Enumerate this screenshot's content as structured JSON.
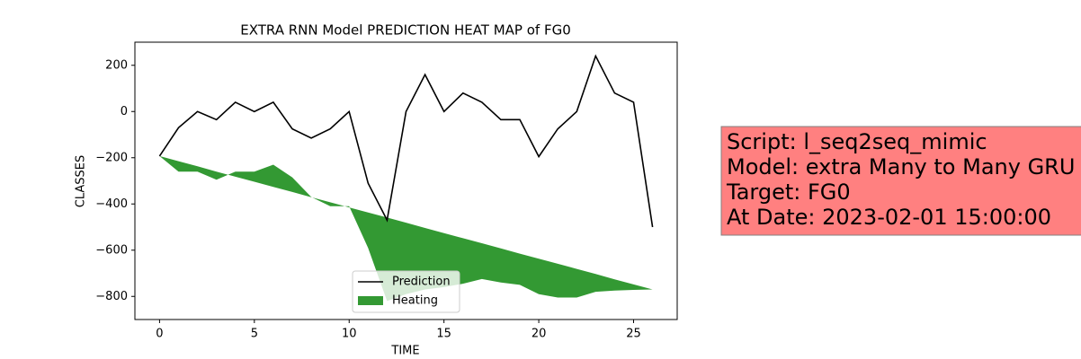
{
  "chart_data": {
    "type": "line",
    "title": "EXTRA RNN Model PREDICTION HEAT MAP of FG0",
    "x_label": "TIME",
    "y_label": "CLASSES",
    "x": [
      0,
      1,
      2,
      3,
      4,
      5,
      6,
      7,
      8,
      9,
      10,
      11,
      12,
      13,
      14,
      15,
      16,
      17,
      18,
      19,
      20,
      21,
      22,
      23,
      24,
      25,
      26
    ],
    "series": [
      {
        "name": "Prediction",
        "color": "#000000",
        "kind": "line",
        "values": [
          -193,
          -70,
          0,
          -35,
          40,
          0,
          40,
          -75,
          -115,
          -75,
          0,
          -310,
          -470,
          0,
          160,
          0,
          80,
          40,
          -35,
          -35,
          -195,
          -75,
          0,
          240,
          80,
          40,
          -500
        ]
      },
      {
        "name": "Heating",
        "color": "#339933",
        "kind": "area",
        "values": [
          -193,
          -260,
          -260,
          -295,
          -260,
          -260,
          -230,
          -285,
          -370,
          -410,
          -410,
          -590,
          -820,
          -790,
          -770,
          -760,
          -745,
          -725,
          -740,
          -750,
          -790,
          -805,
          -805,
          -780,
          -775,
          -772,
          -770
        ],
        "baseline": [
          -193,
          -215,
          -237,
          -260,
          -282,
          -304,
          -326,
          -348,
          -371,
          -393,
          -415,
          -437,
          -459,
          -481,
          -504,
          -526,
          -548,
          -570,
          -592,
          -615,
          -637,
          -659,
          -681,
          -703,
          -726,
          -748,
          -770
        ]
      }
    ],
    "xlim": [
      -1.3,
      27.3
    ],
    "ylim": [
      -900,
      300
    ],
    "xticks": [
      0,
      5,
      10,
      15,
      20,
      25
    ],
    "yticks": [
      {
        "value": -800,
        "label": "−800"
      },
      {
        "value": -600,
        "label": "−600"
      },
      {
        "value": -400,
        "label": "−400"
      },
      {
        "value": -200,
        "label": "−200"
      },
      0,
      200
    ],
    "legend": "lower center",
    "textbox": [
      "Script: l_seq2seq_mimic",
      "Model: extra Many to Many GRU",
      "Target: FG0",
      "At Date: 2023-02-01 15:00:00"
    ]
  }
}
